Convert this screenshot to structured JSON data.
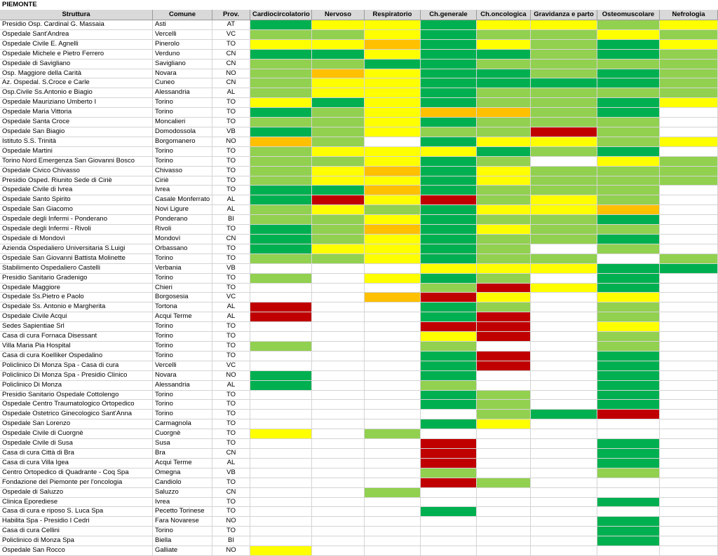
{
  "title": "PIEMONTE",
  "columns": [
    "Struttura",
    "Comune",
    "Prov.",
    "Cardiocircolatorio",
    "Nervoso",
    "Respiratorio",
    "Ch.generale",
    "Ch.oncologica",
    "Gravidanza e parto",
    "Osteomuscolare",
    "Nefrologia"
  ],
  "rows": [
    {
      "cells": [
        "Presidio Osp. Cardinal G. Massaia",
        "Asti",
        "AT"
      ],
      "colors": [
        "#00b050",
        "#ffff00",
        "#ffff00",
        "#00b050",
        "#ffff00",
        "#ffff00",
        "#92d050",
        "#ffff00"
      ]
    },
    {
      "cells": [
        "Ospedale Sant'Andrea",
        "Vercelli",
        "VC"
      ],
      "colors": [
        "#92d050",
        "#92d050",
        "#ffff00",
        "#00b050",
        "#92d050",
        "#92d050",
        "#ffff00",
        "#92d050"
      ]
    },
    {
      "cells": [
        "Ospedale Civile E. Agnelli",
        "Pinerolo",
        "TO"
      ],
      "colors": [
        "#ffff00",
        "#ffff00",
        "#ffc000",
        "#00b050",
        "#ffff00",
        "#92d050",
        "#00b050",
        "#ffff00"
      ]
    },
    {
      "cells": [
        "Ospedale Michele e Pietro Ferrero",
        "Verduno",
        "CN"
      ],
      "colors": [
        "#00b050",
        "#00b050",
        "#ffff00",
        "#00b050",
        "#00b050",
        "#92d050",
        "#00b050",
        "#92d050"
      ]
    },
    {
      "cells": [
        "Ospedale di Savigliano",
        "Savigliano",
        "CN"
      ],
      "colors": [
        "#92d050",
        "#92d050",
        "#00b050",
        "#00b050",
        "#92d050",
        "#92d050",
        "#92d050",
        "#92d050"
      ]
    },
    {
      "cells": [
        "Osp. Maggiore della Carità",
        "Novara",
        "NO"
      ],
      "colors": [
        "#92d050",
        "#ffc000",
        "#ffff00",
        "#00b050",
        "#00b050",
        "#92d050",
        "#00b050",
        "#92d050"
      ]
    },
    {
      "cells": [
        "Az. Ospedal. S.Croce e Carle",
        "Cuneo",
        "CN"
      ],
      "colors": [
        "#92d050",
        "#ffff00",
        "#ffff00",
        "#00b050",
        "#00b050",
        "#00b050",
        "#00b050",
        "#92d050"
      ]
    },
    {
      "cells": [
        "Osp.Civile Ss.Antonio e Biagio",
        "Alessandria",
        "AL"
      ],
      "colors": [
        "#92d050",
        "#ffff00",
        "#ffff00",
        "#00b050",
        "#92d050",
        "#92d050",
        "#92d050",
        "#92d050"
      ]
    },
    {
      "cells": [
        "Ospedale Mauriziano Umberto I",
        "Torino",
        "TO"
      ],
      "colors": [
        "#ffff00",
        "#00b050",
        "#ffff00",
        "#00b050",
        "#92d050",
        "#92d050",
        "#00b050",
        "#ffff00"
      ]
    },
    {
      "cells": [
        "Ospedale Maria Vittoria",
        "Torino",
        "TO"
      ],
      "colors": [
        "#00b050",
        "#92d050",
        "#ffff00",
        "#ffc000",
        "#ffc000",
        "#92d050",
        "#00b050",
        null
      ]
    },
    {
      "cells": [
        "Ospedale Santa Croce",
        "Moncalieri",
        "TO"
      ],
      "colors": [
        "#92d050",
        "#92d050",
        "#ffff00",
        "#00b050",
        "#92d050",
        "#92d050",
        "#92d050",
        null
      ]
    },
    {
      "cells": [
        "Ospedale San Biagio",
        "Domodossola",
        "VB"
      ],
      "colors": [
        "#00b050",
        "#92d050",
        "#ffff00",
        "#92d050",
        "#92d050",
        "#c00000",
        "#92d050",
        null
      ]
    },
    {
      "cells": [
        "Istituto S.S. Trinità",
        "Borgomanero",
        "NO"
      ],
      "colors": [
        "#ffc000",
        "#92d050",
        null,
        "#00b050",
        "#ffff00",
        "#ffff00",
        "#92d050",
        "#ffff00"
      ]
    },
    {
      "cells": [
        "Ospedale Martini",
        "Torino",
        "TO"
      ],
      "colors": [
        "#92d050",
        "#ffff00",
        "#ffff00",
        "#ffff00",
        "#00b050",
        "#92d050",
        "#00b050",
        null
      ]
    },
    {
      "cells": [
        "Torino Nord Emergenza San Giovanni Bosco",
        "Torino",
        "TO"
      ],
      "colors": [
        "#92d050",
        "#92d050",
        "#ffff00",
        "#00b050",
        "#92d050",
        null,
        "#ffff00",
        "#92d050"
      ]
    },
    {
      "cells": [
        "Ospedale Civico Chivasso",
        "Chivasso",
        "TO"
      ],
      "colors": [
        "#92d050",
        "#ffff00",
        "#ffc000",
        "#00b050",
        "#ffff00",
        "#92d050",
        "#92d050",
        "#92d050"
      ]
    },
    {
      "cells": [
        "Presidio Osped. Riunito Sede di Ciriè",
        "Ciriè",
        "TO"
      ],
      "colors": [
        "#92d050",
        "#ffff00",
        "#ffff00",
        "#00b050",
        "#ffff00",
        "#92d050",
        "#92d050",
        "#92d050"
      ]
    },
    {
      "cells": [
        "Ospedale Civile di Ivrea",
        "Ivrea",
        "TO"
      ],
      "colors": [
        "#00b050",
        "#00b050",
        "#ffc000",
        "#00b050",
        "#92d050",
        "#92d050",
        "#92d050",
        null
      ]
    },
    {
      "cells": [
        "Ospedale Santo Spirito",
        "Casale Monferrato",
        "AL"
      ],
      "colors": [
        "#00b050",
        "#c00000",
        "#ffff00",
        "#c00000",
        "#92d050",
        "#ffff00",
        "#92d050",
        null
      ]
    },
    {
      "cells": [
        "Ospedale San Giacomo",
        "Novi Ligure",
        "AL"
      ],
      "colors": [
        "#92d050",
        "#ffff00",
        "#92d050",
        "#00b050",
        "#ffff00",
        "#ffff00",
        "#ffc000",
        null
      ]
    },
    {
      "cells": [
        "Ospedale degli Infermi - Ponderano",
        "Ponderano",
        "BI"
      ],
      "colors": [
        "#92d050",
        "#92d050",
        "#ffff00",
        "#00b050",
        "#92d050",
        "#92d050",
        "#00b050",
        null
      ]
    },
    {
      "cells": [
        "Ospedale degli Infermi - Rivoli",
        "Rivoli",
        "TO"
      ],
      "colors": [
        "#00b050",
        "#92d050",
        "#ffc000",
        "#00b050",
        "#ffff00",
        "#92d050",
        "#92d050",
        null
      ]
    },
    {
      "cells": [
        "Ospedale di Mondovì",
        "Mondovì",
        "CN"
      ],
      "colors": [
        "#00b050",
        "#92d050",
        "#ffff00",
        "#00b050",
        "#92d050",
        "#92d050",
        "#00b050",
        null
      ]
    },
    {
      "cells": [
        "Azienda Ospedaliero Universitaria S.Luigi",
        "Orbassano",
        "TO"
      ],
      "colors": [
        "#00b050",
        "#ffff00",
        "#ffff00",
        "#00b050",
        "#92d050",
        null,
        "#92d050",
        null
      ]
    },
    {
      "cells": [
        "Ospedale San Giovanni Battista Molinette",
        "Torino",
        "TO"
      ],
      "colors": [
        "#92d050",
        "#92d050",
        "#ffff00",
        "#00b050",
        "#92d050",
        "#92d050",
        null,
        "#92d050"
      ]
    },
    {
      "cells": [
        "Stabilimento Ospedaliero Castelli",
        "Verbania",
        "VB"
      ],
      "colors": [
        null,
        null,
        null,
        "#ffff00",
        "#ffff00",
        "#ffff00",
        "#00b050",
        "#00b050"
      ]
    },
    {
      "cells": [
        "Presidio Sanitario Gradenigo",
        "Torino",
        "TO"
      ],
      "colors": [
        "#92d050",
        null,
        "#ffff00",
        "#00b050",
        "#92d050",
        null,
        "#00b050",
        null
      ]
    },
    {
      "cells": [
        "Ospedale Maggiore",
        "Chieri",
        "TO"
      ],
      "colors": [
        null,
        null,
        null,
        "#92d050",
        "#c00000",
        "#ffff00",
        "#00b050",
        null
      ]
    },
    {
      "cells": [
        "Ospedale Ss.Pietro e Paolo",
        "Borgosesia",
        "VC"
      ],
      "colors": [
        null,
        null,
        "#ffc000",
        "#c00000",
        "#ffff00",
        null,
        "#ffff00",
        null
      ]
    },
    {
      "cells": [
        "Ospedale Ss. Antonio e Margherita",
        "Tortona",
        "AL"
      ],
      "colors": [
        "#c00000",
        null,
        null,
        "#00b050",
        "#92d050",
        null,
        "#92d050",
        null
      ]
    },
    {
      "cells": [
        "Ospedale Civile Acqui",
        "Acqui Terme",
        "AL"
      ],
      "colors": [
        "#c00000",
        null,
        null,
        "#00b050",
        "#c00000",
        null,
        "#92d050",
        null
      ]
    },
    {
      "cells": [
        "Sedes Sapientiae Srl",
        "Torino",
        "TO"
      ],
      "colors": [
        null,
        null,
        null,
        "#c00000",
        "#c00000",
        null,
        "#ffff00",
        null
      ]
    },
    {
      "cells": [
        "Casa di cura Fornaca Disessant",
        "Torino",
        "TO"
      ],
      "colors": [
        null,
        null,
        null,
        "#ffff00",
        "#c00000",
        null,
        "#92d050",
        null
      ]
    },
    {
      "cells": [
        "Villa Maria Pia Hospital",
        "Torino",
        "TO"
      ],
      "colors": [
        "#92d050",
        null,
        null,
        "#92d050",
        null,
        null,
        "#92d050",
        null
      ]
    },
    {
      "cells": [
        "Casa di cura Koelliker Ospedalino",
        "Torino",
        "TO"
      ],
      "colors": [
        null,
        null,
        null,
        "#00b050",
        "#c00000",
        null,
        "#00b050",
        null
      ]
    },
    {
      "cells": [
        "Policlinico Di Monza Spa - Casa di cura",
        "Vercelli",
        "VC"
      ],
      "colors": [
        null,
        null,
        null,
        "#00b050",
        "#c00000",
        null,
        "#00b050",
        null
      ]
    },
    {
      "cells": [
        "Policlinico Di Monza Spa - Presidio Clinico",
        "Novara",
        "NO"
      ],
      "colors": [
        "#00b050",
        null,
        null,
        "#00b050",
        null,
        null,
        "#00b050",
        null
      ]
    },
    {
      "cells": [
        "Policlinico Di Monza",
        "Alessandria",
        "AL"
      ],
      "colors": [
        "#00b050",
        null,
        null,
        "#92d050",
        null,
        null,
        "#00b050",
        null
      ]
    },
    {
      "cells": [
        "Presidio Sanitario Ospedale Cottolengo",
        "Torino",
        "TO"
      ],
      "colors": [
        null,
        null,
        null,
        "#00b050",
        "#92d050",
        null,
        "#00b050",
        null
      ]
    },
    {
      "cells": [
        "Ospedale Centro Traumatologico Ortopedico",
        "Torino",
        "TO"
      ],
      "colors": [
        null,
        null,
        null,
        "#00b050",
        "#92d050",
        null,
        "#00b050",
        null
      ]
    },
    {
      "cells": [
        "Ospedale Ostetrico Ginecologico Sant'Anna",
        "Torino",
        "TO"
      ],
      "colors": [
        null,
        null,
        null,
        null,
        "#92d050",
        "#00b050",
        "#c00000",
        null
      ]
    },
    {
      "cells": [
        "Ospedale San Lorenzo",
        "Carmagnola",
        "TO"
      ],
      "colors": [
        null,
        null,
        null,
        "#00b050",
        "#ffff00",
        null,
        null,
        null
      ]
    },
    {
      "cells": [
        "Ospedale Civile di Cuorgnè",
        "Cuorgnè",
        "TO"
      ],
      "colors": [
        "#ffff00",
        null,
        "#92d050",
        null,
        null,
        null,
        null,
        null
      ]
    },
    {
      "cells": [
        "Ospedale Civile di Susa",
        "Susa",
        "TO"
      ],
      "colors": [
        null,
        null,
        null,
        "#c00000",
        null,
        null,
        "#00b050",
        null
      ]
    },
    {
      "cells": [
        "Casa di cura Città di Bra",
        "Bra",
        "CN"
      ],
      "colors": [
        null,
        null,
        null,
        "#c00000",
        null,
        null,
        "#00b050",
        null
      ]
    },
    {
      "cells": [
        "Casa di cura Villa Igea",
        "Acqui Terme",
        "AL"
      ],
      "colors": [
        null,
        null,
        null,
        "#c00000",
        null,
        null,
        "#00b050",
        null
      ]
    },
    {
      "cells": [
        "Centro Ortopedico di Quadrante - Coq Spa",
        "Omegna",
        "VB"
      ],
      "colors": [
        null,
        null,
        null,
        "#92d050",
        null,
        null,
        "#92d050",
        null
      ]
    },
    {
      "cells": [
        "Fondazione del Piemonte per l'oncologia",
        "Candiolo",
        "TO"
      ],
      "colors": [
        null,
        null,
        null,
        "#c00000",
        "#92d050",
        null,
        null,
        null
      ]
    },
    {
      "cells": [
        "Ospedale di Saluzzo",
        "Saluzzo",
        "CN"
      ],
      "colors": [
        null,
        null,
        "#92d050",
        null,
        null,
        null,
        null,
        null
      ]
    },
    {
      "cells": [
        "Clinica Eporediese",
        "Ivrea",
        "TO"
      ],
      "colors": [
        null,
        null,
        null,
        null,
        null,
        null,
        "#00b050",
        null
      ]
    },
    {
      "cells": [
        "Casa di cura e riposo S. Luca Spa",
        "Pecetto Torinese",
        "TO"
      ],
      "colors": [
        null,
        null,
        null,
        "#00b050",
        null,
        null,
        null,
        null
      ]
    },
    {
      "cells": [
        "Habilita Spa - Presidio I Cedri",
        "Fara Novarese",
        "NO"
      ],
      "colors": [
        null,
        null,
        null,
        null,
        null,
        null,
        "#00b050",
        null
      ]
    },
    {
      "cells": [
        "Casa di cura Cellini",
        "Torino",
        "TO"
      ],
      "colors": [
        null,
        null,
        null,
        null,
        null,
        null,
        "#00b050",
        null
      ]
    },
    {
      "cells": [
        "Policlinico di Monza Spa",
        "Biella",
        "BI"
      ],
      "colors": [
        null,
        null,
        null,
        null,
        null,
        null,
        "#00b050",
        null
      ]
    },
    {
      "cells": [
        "Ospedale San Rocco",
        "Galliate",
        "NO"
      ],
      "colors": [
        "#ffff00",
        null,
        null,
        null,
        null,
        null,
        null,
        null
      ]
    }
  ]
}
